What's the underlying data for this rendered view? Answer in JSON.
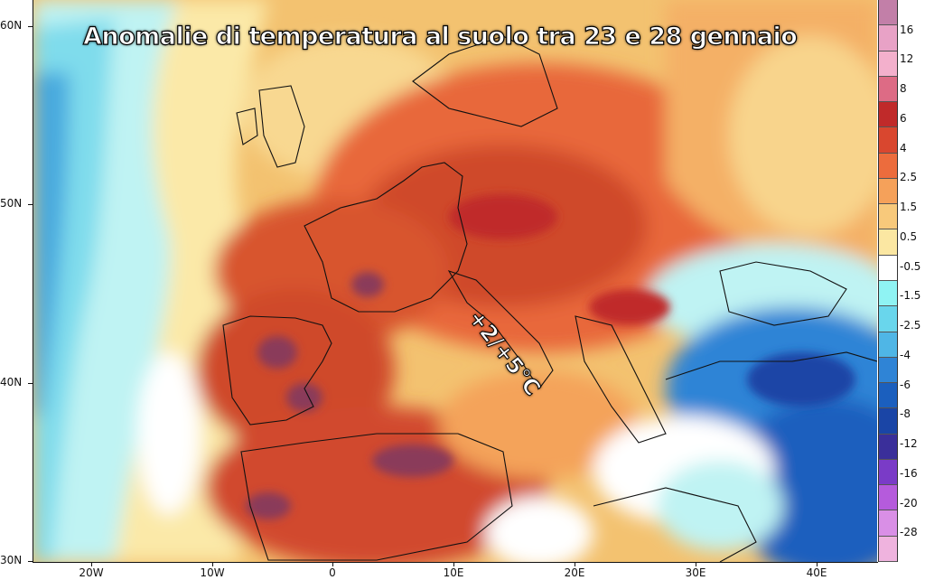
{
  "title": "Anomalie di temperatura al suolo tra 23 e 28 gennaio",
  "annotation": "+2/+5°C",
  "latitude_labels": [
    "60N",
    "50N",
    "40N",
    "30N"
  ],
  "longitude_labels": [
    "20W",
    "10W",
    "0",
    "10E",
    "20E",
    "30E",
    "40E"
  ],
  "legend": {
    "boundaries": [
      "16",
      "12",
      "8",
      "6",
      "4",
      "2.5",
      "1.5",
      "0.5",
      "-0.5",
      "-1.5",
      "-2.5",
      "-4",
      "-6",
      "-8",
      "-12",
      "-16",
      "-20",
      "-28"
    ],
    "colors": [
      "#c27fa8",
      "#e8a2c6",
      "#f3b0cc",
      "#dd6b85",
      "#c02a2a",
      "#d9472f",
      "#ec6c3d",
      "#f5a15a",
      "#f8c97b",
      "#fbe7a2",
      "#ffffff",
      "#8ff3f3",
      "#69d6ec",
      "#4fb6e6",
      "#2f84d6",
      "#1b5fbe",
      "#1a45a6",
      "#3a2f9a",
      "#7a3bc7",
      "#b55bdc",
      "#d98fe6",
      "#efb3de"
    ]
  },
  "colors": {
    "hot_core": "#8a3a5a",
    "very_warm": "#c9472f",
    "warm": "#e8683a",
    "mild": "#f4a35a",
    "slight_warm": "#f7cb80",
    "neutral": "#fbe9a8",
    "slight_cold": "#bff3f3",
    "cold": "#4a9fe0",
    "very_cold": "#1b5fbe",
    "deep_cold": "#1a45a6",
    "ocean_cold": "#6fd8ea",
    "ocean_colder": "#3aa6dc"
  }
}
